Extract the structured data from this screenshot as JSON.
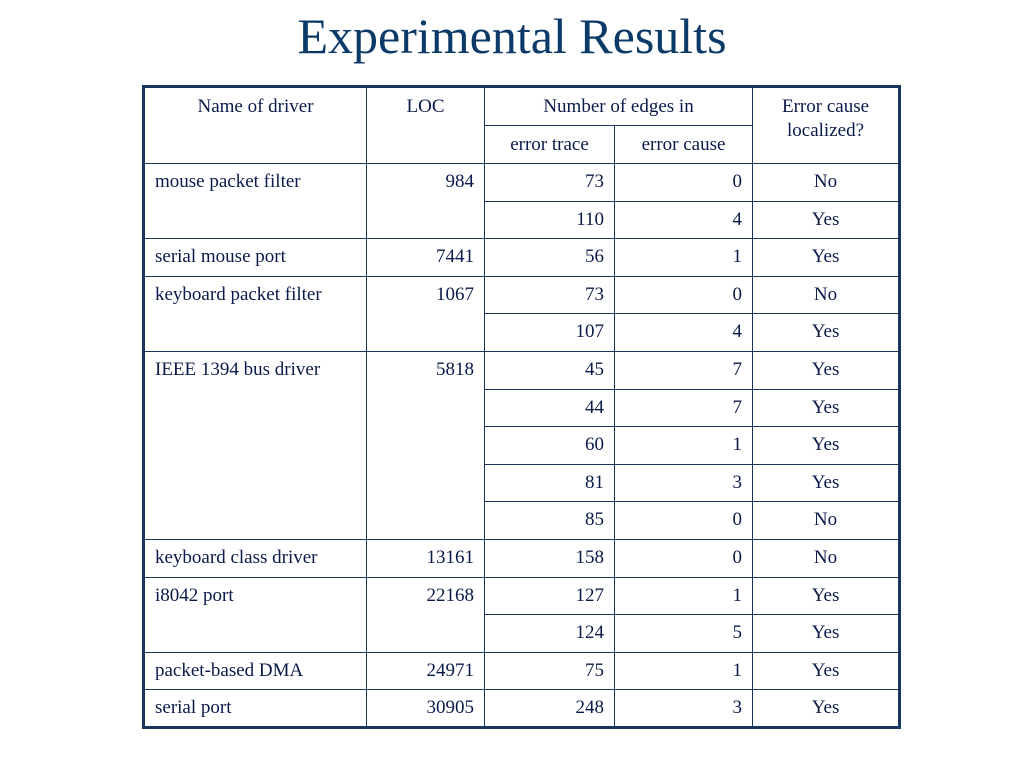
{
  "title": "Experimental Results",
  "table": {
    "headers": {
      "name": "Name of driver",
      "loc": "LOC",
      "edges_group": "Number of edges in",
      "error_trace": "error trace",
      "error_cause": "error cause",
      "localized": "Error cause localized?"
    },
    "groups": [
      {
        "name": "mouse packet filter",
        "loc": "984",
        "rows": [
          {
            "trace": "73",
            "cause": "0",
            "localized": "No"
          },
          {
            "trace": "110",
            "cause": "4",
            "localized": "Yes"
          }
        ]
      },
      {
        "name": "serial mouse port",
        "loc": "7441",
        "rows": [
          {
            "trace": "56",
            "cause": "1",
            "localized": "Yes"
          }
        ]
      },
      {
        "name": "keyboard packet filter",
        "loc": "1067",
        "rows": [
          {
            "trace": "73",
            "cause": "0",
            "localized": "No"
          },
          {
            "trace": "107",
            "cause": "4",
            "localized": "Yes"
          }
        ]
      },
      {
        "name": "IEEE 1394 bus driver",
        "loc": "5818",
        "rows": [
          {
            "trace": "45",
            "cause": "7",
            "localized": "Yes"
          },
          {
            "trace": "44",
            "cause": "7",
            "localized": "Yes"
          },
          {
            "trace": "60",
            "cause": "1",
            "localized": "Yes"
          },
          {
            "trace": "81",
            "cause": "3",
            "localized": "Yes"
          },
          {
            "trace": "85",
            "cause": "0",
            "localized": "No"
          }
        ]
      },
      {
        "name": "keyboard class driver",
        "loc": "13161",
        "rows": [
          {
            "trace": "158",
            "cause": "0",
            "localized": "No"
          }
        ]
      },
      {
        "name": "i8042 port",
        "loc": "22168",
        "rows": [
          {
            "trace": "127",
            "cause": "1",
            "localized": "Yes"
          },
          {
            "trace": "124",
            "cause": "5",
            "localized": "Yes"
          }
        ]
      },
      {
        "name": "packet-based DMA",
        "loc": "24971",
        "rows": [
          {
            "trace": "75",
            "cause": "1",
            "localized": "Yes"
          }
        ]
      },
      {
        "name": "serial port",
        "loc": "30905",
        "rows": [
          {
            "trace": "248",
            "cause": "3",
            "localized": "Yes"
          }
        ]
      }
    ]
  }
}
